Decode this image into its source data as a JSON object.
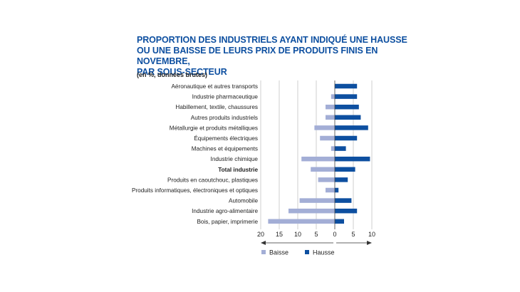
{
  "title_lines": [
    "PROPORTION DES INDUSTRIELS AYANT INDIQUÉ UNE HAUSSE",
    "OU UNE BAISSE DE LEURS PRIX DE PRODUITS FINIS EN NOVEMBRE,",
    "PAR SOUS-SECTEUR"
  ],
  "subtitle": "(en %, données brutes)",
  "colors": {
    "baisse": "#a3aed6",
    "hausse": "#0d4fa0",
    "title": "#0d4fa0",
    "grid": "#bbbbbb"
  },
  "chart_data": {
    "type": "bar",
    "orientation": "horizontal-diverging",
    "title": "PROPORTION DES INDUSTRIELS AYANT INDIQUÉ UNE HAUSSE OU UNE BAISSE DE LEURS PRIX DE PRODUITS FINIS EN NOVEMBRE, PAR SOUS-SECTEUR",
    "subtitle": "(en %, données brutes)",
    "categories": [
      "Aéronautique et autres transports",
      "Industrie pharmaceutique",
      "Habillement, textile, chaussures",
      "Autres produits industriels",
      "Métallurgie et produits métalliques",
      "Équipements électriques",
      "Machines et équipements",
      "Industrie chimique",
      "Total industrie",
      "Produits en caoutchouc, plastiques",
      "Produits informatiques, électroniques et optiques",
      "Automobile",
      "Industrie agro-alimentaire",
      "Bois, papier, imprimerie"
    ],
    "bold_categories": [
      "Total industrie"
    ],
    "series": [
      {
        "name": "Baisse",
        "direction": "left",
        "values": [
          0,
          1,
          2.5,
          2.5,
          5.5,
          4,
          1,
          9,
          6.5,
          4.5,
          2.5,
          9.5,
          12.5,
          18
        ]
      },
      {
        "name": "Hausse",
        "direction": "right",
        "values": [
          6,
          6,
          6.5,
          7,
          9,
          6,
          3,
          9.5,
          5.5,
          3.5,
          1,
          4.5,
          6,
          2.5
        ]
      }
    ],
    "x_ticks": [
      "20",
      "15",
      "10",
      "5",
      "0",
      "5",
      "10"
    ],
    "xlim": [
      -20,
      10
    ],
    "legend": [
      "Baisse",
      "Hausse"
    ]
  }
}
